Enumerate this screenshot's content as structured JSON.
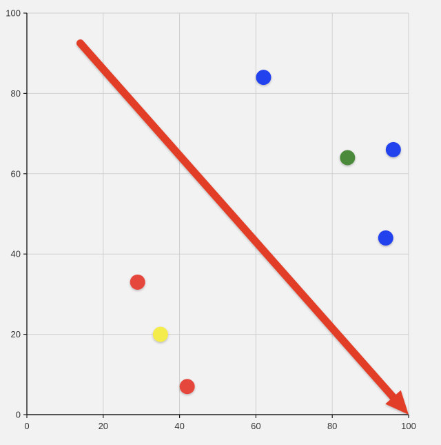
{
  "chart_data": {
    "type": "scatter",
    "title": "",
    "xlabel": "",
    "ylabel": "",
    "xlim": [
      0,
      100
    ],
    "ylim": [
      0,
      100
    ],
    "grid": true,
    "x_ticks": [
      "0",
      "20",
      "40",
      "60",
      "80",
      "100"
    ],
    "y_ticks": [
      "0",
      "20",
      "40",
      "60",
      "80",
      "100"
    ],
    "points": [
      {
        "x": 62,
        "y": 84,
        "color": "#2343ee"
      },
      {
        "x": 84,
        "y": 64,
        "color": "#4b8a3a"
      },
      {
        "x": 96,
        "y": 66,
        "color": "#2343ee"
      },
      {
        "x": 94,
        "y": 44,
        "color": "#2343ee"
      },
      {
        "x": 29,
        "y": 33,
        "color": "#e5473c"
      },
      {
        "x": 35,
        "y": 20,
        "color": "#f4ec4c"
      },
      {
        "x": 42,
        "y": 7,
        "color": "#e5473c"
      }
    ],
    "arrow": {
      "from": {
        "x": 14,
        "y": 92.5
      },
      "to": {
        "x": 100,
        "y": 0
      },
      "color": "#e23d28"
    }
  }
}
